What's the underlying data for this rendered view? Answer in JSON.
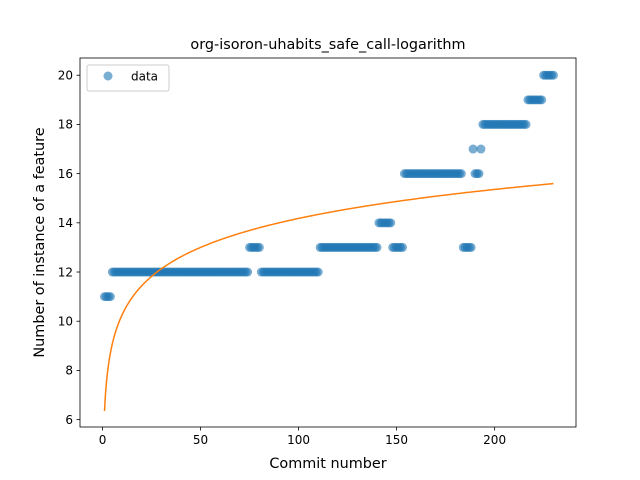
{
  "chart_data": {
    "type": "scatter",
    "title": "org-isoron-uhabits_safe_call-logarithm",
    "xlabel": "Commit number",
    "ylabel": "Number of instance of a feature",
    "xlim": [
      -11.5,
      241.5
    ],
    "ylim": [
      5.7,
      20.7
    ],
    "xticks": [
      0,
      50,
      100,
      150,
      200
    ],
    "yticks": [
      6,
      8,
      10,
      12,
      14,
      16,
      18,
      20
    ],
    "grid": false,
    "legend": {
      "placement": "top-left",
      "entries": [
        "data"
      ]
    },
    "colors": {
      "data": "#1f77b4",
      "fit": "#ff7f0e"
    },
    "series": [
      {
        "name": "data",
        "kind": "points",
        "segments": [
          {
            "x_start": 1,
            "x_end": 4,
            "y": 11
          },
          {
            "x_start": 5,
            "x_end": 74,
            "y": 12
          },
          {
            "x_start": 75,
            "x_end": 80,
            "y": 13
          },
          {
            "x_start": 81,
            "x_end": 110,
            "y": 12
          },
          {
            "x_start": 111,
            "x_end": 140,
            "y": 13
          },
          {
            "x_start": 141,
            "x_end": 147,
            "y": 14
          },
          {
            "x_start": 148,
            "x_end": 153,
            "y": 13
          },
          {
            "x_start": 154,
            "x_end": 183,
            "y": 16
          },
          {
            "x_start": 184,
            "x_end": 188,
            "y": 13
          },
          {
            "x_start": 189,
            "x_end": 189,
            "y": 17
          },
          {
            "x_start": 190,
            "x_end": 192,
            "y": 16
          },
          {
            "x_start": 193,
            "x_end": 193,
            "y": 17
          },
          {
            "x_start": 194,
            "x_end": 216,
            "y": 18
          },
          {
            "x_start": 217,
            "x_end": 224,
            "y": 19
          },
          {
            "x_start": 225,
            "x_end": 230,
            "y": 20
          }
        ]
      },
      {
        "kind": "line",
        "formula": "y = 6.35 + 1.7 * ln(x)",
        "x_range": [
          1,
          230
        ]
      }
    ]
  }
}
